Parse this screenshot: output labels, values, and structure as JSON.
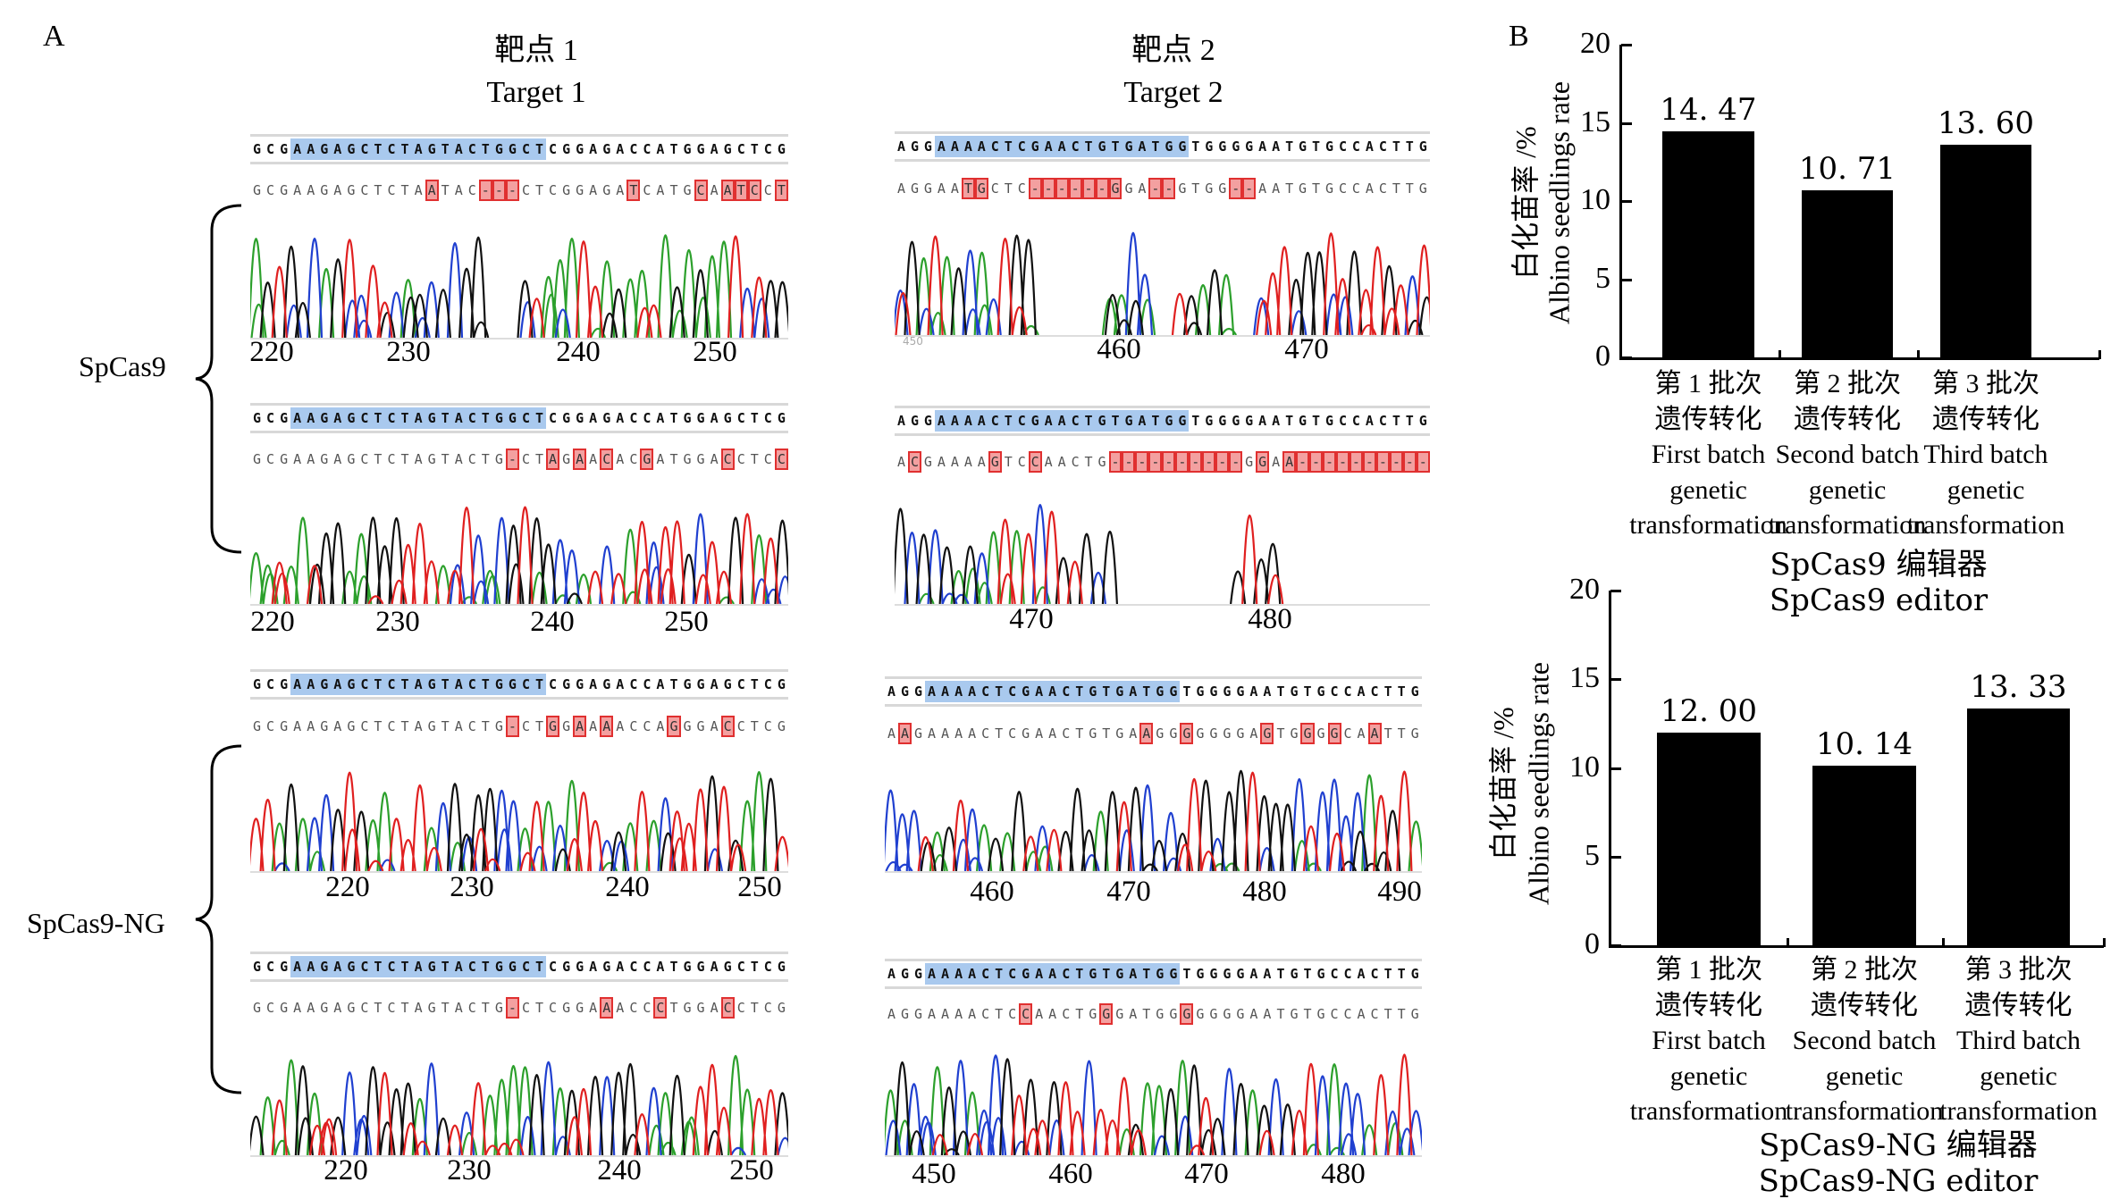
{
  "panel_a": {
    "label": "A",
    "target1_title": [
      "靶点 1",
      "Target 1"
    ],
    "target2_title": [
      "靶点 2",
      "Target 2"
    ],
    "editors": [
      "SpCas9",
      "SpCas9-NG"
    ],
    "panels": [
      {
        "target": 1,
        "editor": "SpCas9",
        "reference": "GCGAAGAGCTCTAGTACTGGCTCGGAGACCATGGAGCTCG",
        "sample": "GCGAAGAGCTCTAATAC---CTCGGAGATCATGCAATCCT",
        "target_start": 3,
        "target_end": 21,
        "ticks": [
          "220",
          "230",
          "240",
          "250"
        ]
      },
      {
        "target": 2,
        "editor": "SpCas9",
        "reference": "AGGAAAACTCGAACTGTGATGGTGGGGAATGTGCCACTTG",
        "sample": "AGGAATGCTC------GGA--GTGG--AATGTGCCACTTG",
        "target_start": 3,
        "target_end": 21,
        "ticks": [
          "460",
          "470"
        ],
        "minor_tick": "450"
      },
      {
        "target": 1,
        "editor": "SpCas9",
        "reference": "GCGAAGAGCTCTAGTACTGGCTCGGAGACCATGGAGCTCG",
        "sample": "GCGAAGAGCTCTAGTACTG-CTAGAACACGATGGACCTCC",
        "target_start": 3,
        "target_end": 21,
        "ticks": [
          "220",
          "230",
          "240",
          "250"
        ]
      },
      {
        "target": 2,
        "editor": "SpCas9",
        "reference": "AGGAAAACTCGAACTGTGATGGTGGGGAATGTGCCACTTG",
        "sample": "ACGAAAAGTCCAACTG----------GGAA----------",
        "target_start": 3,
        "target_end": 21,
        "ticks": [
          "470",
          "480"
        ]
      },
      {
        "target": 1,
        "editor": "SpCas9-NG",
        "reference": "GCGAAGAGCTCTAGTACTGGCTCGGAGACCATGGAGCTCG",
        "sample": "GCGAAGAGCTCTAGTACTG-CTGGAAAACCAGGGACCTCG",
        "target_start": 3,
        "target_end": 21,
        "ticks": [
          "220",
          "230",
          "240",
          "250"
        ]
      },
      {
        "target": 2,
        "editor": "SpCas9-NG",
        "reference": "AGGAAAACTCGAACTGTGATGGTGGGGAATGTGCCACTTG",
        "sample": "AAGAAAACTCGAACTGTGAAGGGGGGGAGTGGGGCAATTG",
        "target_start": 3,
        "target_end": 21,
        "ticks": [
          "460",
          "470",
          "480",
          "490"
        ]
      },
      {
        "target": 1,
        "editor": "SpCas9-NG",
        "reference": "GCGAAGAGCTCTAGTACTGGCTCGGAGACCATGGAGCTCG",
        "sample": "GCGAAGAGCTCTAGTACTG-CTCGGAAACCCTGGACCTCG",
        "target_start": 3,
        "target_end": 21,
        "ticks": [
          "220",
          "230",
          "240",
          "250"
        ]
      },
      {
        "target": 2,
        "editor": "SpCas9-NG",
        "reference": "AGGAAAACTCGAACTGTGATGGTGGGGAATGTGCCACTTG",
        "sample": "AGGAAAACTCCAACTGGGATGGGGGGGAATGTGCCACTTG",
        "target_start": 3,
        "target_end": 21,
        "ticks": [
          "450",
          "460",
          "470",
          "480"
        ]
      }
    ],
    "colors": {
      "target_highlight": "#a9c9ee",
      "mismatch": "#e03030",
      "trace_A": "#2ca02c",
      "trace_C": "#2040d0",
      "trace_G": "#111111",
      "trace_T": "#e02020"
    }
  },
  "chart_data": [
    {
      "type": "bar",
      "panel_label": "B",
      "title": [
        "SpCas9 编辑器",
        "SpCas9 editor"
      ],
      "ylabel": [
        "白化苗率 /%",
        "Albino seedlings rate"
      ],
      "ylim": [
        0,
        20
      ],
      "yticks": [
        "0",
        "5",
        "10",
        "15",
        "20"
      ],
      "categories": [
        [
          "第 1 批次",
          "遗传转化",
          "First batch",
          "genetic",
          "transformation"
        ],
        [
          "第 2 批次",
          "遗传转化",
          "Second batch",
          "genetic",
          "transformation"
        ],
        [
          "第 3 批次",
          "遗传转化",
          "Third batch",
          "genetic",
          "transformation"
        ]
      ],
      "values": [
        14.47,
        10.71,
        13.6
      ],
      "value_labels": [
        "14. 47",
        "10. 71",
        "13. 60"
      ],
      "bar_color": "#000000",
      "grid": false
    },
    {
      "type": "bar",
      "title": [
        "SpCas9-NG 编辑器",
        "SpCas9-NG editor"
      ],
      "ylabel": [
        "白化苗率 /%",
        "Albino seedlings rate"
      ],
      "ylim": [
        0,
        20
      ],
      "yticks": [
        "0",
        "5",
        "10",
        "15",
        "20"
      ],
      "categories": [
        [
          "第 1 批次",
          "遗传转化",
          "First batch",
          "genetic",
          "transformation"
        ],
        [
          "第 2 批次",
          "遗传转化",
          "Second batch",
          "genetic",
          "transformation"
        ],
        [
          "第 3 批次",
          "遗传转化",
          "Third batch",
          "genetic",
          "transformation"
        ]
      ],
      "values": [
        12.0,
        10.14,
        13.33
      ],
      "value_labels": [
        "12. 00",
        "10. 14",
        "13. 33"
      ],
      "bar_color": "#000000",
      "grid": false
    }
  ]
}
